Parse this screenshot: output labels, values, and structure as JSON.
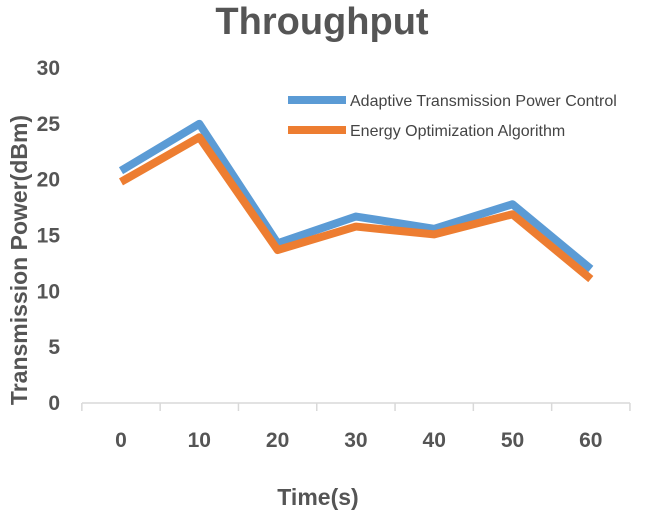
{
  "chart_data": {
    "type": "line",
    "title": "Throughput",
    "xlabel": "Time(s)",
    "ylabel": "Transmission Power(dBm)",
    "x": [
      0,
      10,
      20,
      30,
      40,
      50,
      60
    ],
    "ylim": [
      0,
      30
    ],
    "yticks": [
      0,
      5,
      10,
      15,
      20,
      25,
      30
    ],
    "grid": false,
    "legend_position": "top-right",
    "series": [
      {
        "name": "Adaptive Transmission Power Control",
        "color": "#5b9bd5",
        "values": [
          20.8,
          25.0,
          14.3,
          16.7,
          15.6,
          17.8,
          12.0
        ]
      },
      {
        "name": "Energy Optimization Algorithm",
        "color": "#ed7d31",
        "values": [
          19.8,
          23.8,
          13.7,
          15.8,
          15.1,
          16.9,
          11.1
        ]
      }
    ]
  }
}
